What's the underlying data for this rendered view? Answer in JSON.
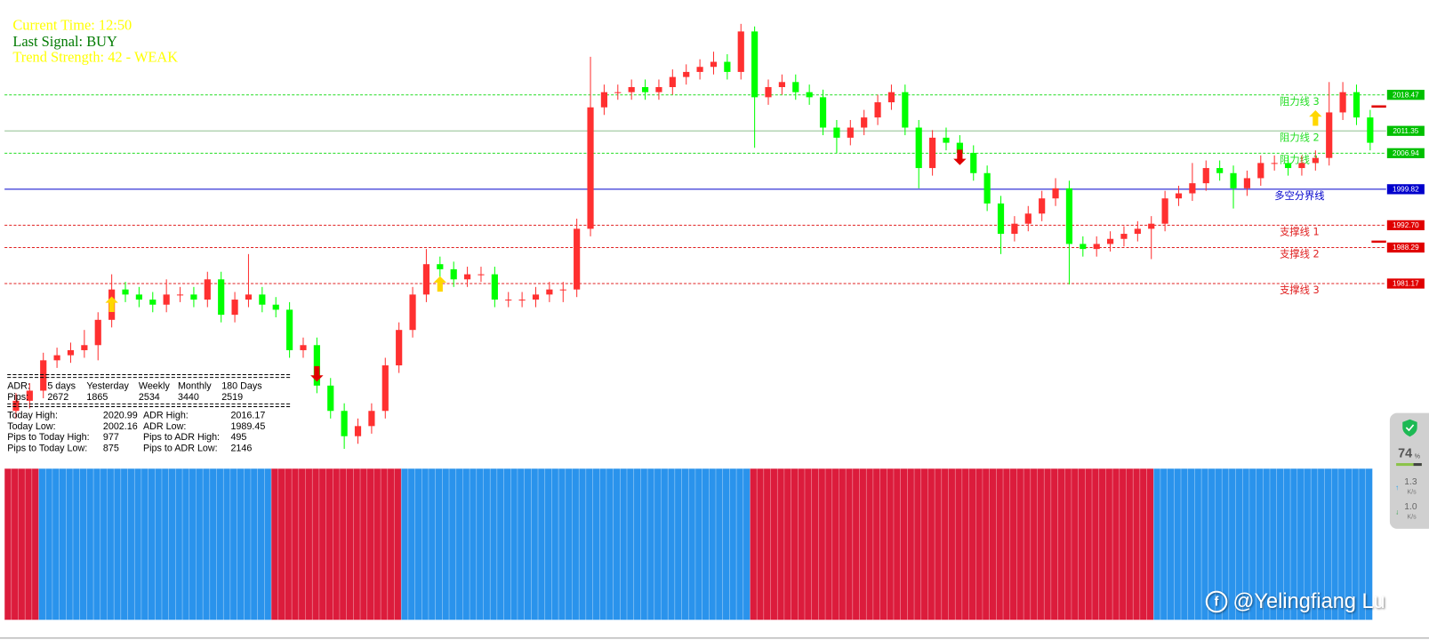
{
  "header": {
    "current_time": "Current Time: 12:50",
    "last_signal": "Last Signal: BUY",
    "trend_strength": "Trend Strength: 42 - WEAK"
  },
  "adr_table": {
    "head": [
      "ADR:",
      "5 days",
      "Yesterday",
      "Weekly",
      "Monthly",
      "180 Days"
    ],
    "pips": [
      "Pips:",
      "2672",
      "1865",
      "2534",
      "3440",
      "2519"
    ],
    "rows": [
      [
        "Today High:",
        "2020.99",
        "ADR High:",
        "2016.17"
      ],
      [
        "Today Low:",
        "2002.16",
        "ADR Low:",
        "1989.45"
      ],
      [
        "Pips to Today High:",
        "977",
        "Pips to ADR High:",
        "495"
      ],
      [
        "Pips to Today Low:",
        "875",
        "Pips to ADR Low:",
        "2146"
      ]
    ]
  },
  "chart_data": {
    "type": "candlestick",
    "ylim": [
      1947.12,
      2037.21
    ],
    "up_color": "#ff3030",
    "down_color": "#00ff00",
    "open": [
      1956,
      1958,
      1960,
      1966,
      1967,
      1968,
      1969,
      1974,
      1980,
      1979,
      1978,
      1977,
      1979,
      1979,
      1978,
      1982,
      1975,
      1978,
      1979,
      1977,
      1976,
      1968,
      1969,
      1961,
      1956,
      1951,
      1953,
      1956,
      1965,
      1972,
      1979,
      1985,
      1984,
      1982,
      1983,
      1983,
      1978,
      1978,
      1978,
      1979,
      1980,
      1980,
      1992,
      2016,
      2019,
      2019,
      2020,
      2019,
      2020,
      2022,
      2023,
      2024,
      2025,
      2023,
      2031,
      2018,
      2020,
      2021,
      2019,
      2018,
      2012,
      2010,
      2012,
      2014,
      2017,
      2019,
      2012,
      2004,
      2010,
      2009,
      2007,
      2003,
      1997,
      1991,
      1993,
      1995,
      1998,
      2000,
      1989,
      1988,
      1989,
      1990,
      1991,
      1992,
      1993,
      1998,
      1999,
      2001,
      2004,
      2003,
      2000,
      2002,
      2005,
      2005,
      2004,
      2005,
      2006,
      2015,
      2019,
      2014
    ],
    "high": [
      1959.5,
      1961.5,
      1967.5,
      1968.5,
      1969.5,
      1972,
      1975.5,
      1983,
      1981.5,
      1980.5,
      1979.5,
      1982,
      1980.5,
      1980.5,
      1983.5,
      1983.5,
      1979.5,
      1987,
      1980.5,
      1978.5,
      1977.5,
      1970.5,
      1970.5,
      1962.5,
      1957.5,
      1954.5,
      1957.5,
      1966.5,
      1973.5,
      1980.5,
      1988,
      1986.5,
      1985.5,
      1984.5,
      1984.5,
      1984.5,
      1979.5,
      1979.5,
      1980.5,
      1981.5,
      1981.5,
      1994,
      2026,
      2020.5,
      2020.5,
      2021.5,
      2021.5,
      2021.5,
      2023.5,
      2024.5,
      2025.5,
      2027,
      2026.5,
      2032.5,
      2032,
      2021.5,
      2022.5,
      2022.5,
      2020.5,
      2019.5,
      2013.5,
      2013.5,
      2015.5,
      2018.5,
      2020.5,
      2020.5,
      2013.5,
      2011.5,
      2012,
      2010.5,
      2008.5,
      2004.5,
      1998.5,
      1994.5,
      1996.5,
      1999.5,
      2002,
      2001.5,
      1990.5,
      1990.5,
      1991.5,
      1992.5,
      1993.5,
      1994.5,
      1999.5,
      2000.5,
      2005,
      2005.5,
      2005.5,
      2004.5,
      2003.5,
      2006.5,
      2006.5,
      2006.5,
      2006.5,
      2007.5,
      2021,
      2021,
      2020.5,
      2015.5
    ],
    "low": [
      1954.5,
      1956.5,
      1958.5,
      1964.5,
      1965.5,
      1966.5,
      1966,
      1972.5,
      1977.5,
      1976.5,
      1975.5,
      1975.5,
      1977.5,
      1976.5,
      1976.5,
      1973.5,
      1973.5,
      1976.5,
      1975.5,
      1974.5,
      1966.5,
      1966.5,
      1959.5,
      1954.5,
      1948.5,
      1949.5,
      1951.5,
      1954.5,
      1963.5,
      1970.5,
      1977.5,
      1982.5,
      1980.5,
      1980.5,
      1981.5,
      1976.5,
      1976.5,
      1976.5,
      1976.5,
      1977.5,
      1977.5,
      1978.5,
      1990.5,
      2014.5,
      2017.5,
      2017.5,
      2017.5,
      2017.5,
      2018.5,
      2020.5,
      2021.5,
      2022.5,
      2021.5,
      2021.5,
      2008,
      2016.5,
      2018.5,
      2017.5,
      2016.5,
      2010.5,
      2007,
      2008.5,
      2010.5,
      2012.5,
      2015.5,
      2010.5,
      2000,
      2002.5,
      2007.5,
      2005.5,
      2001.5,
      1995.5,
      1987,
      1989.5,
      1991.5,
      1993.5,
      1996.5,
      1981,
      1986.5,
      1986.5,
      1987.5,
      1988.5,
      1989.5,
      1986,
      1991.5,
      1996.5,
      1997.5,
      1999.5,
      2001.5,
      1996,
      1998.5,
      2000.5,
      2003.5,
      2002.5,
      2002.5,
      2003.5,
      2004.5,
      2013.5,
      2012.5,
      2007.5
    ],
    "close": [
      1958,
      1960,
      1966,
      1967,
      1968,
      1969,
      1974,
      1980,
      1979,
      1978,
      1977,
      1979,
      1979,
      1978,
      1982,
      1975,
      1978,
      1979,
      1977,
      1976,
      1968,
      1969,
      1961,
      1956,
      1951,
      1953,
      1956,
      1965,
      1972,
      1979,
      1985,
      1984,
      1982,
      1983,
      1983,
      1978,
      1978,
      1978,
      1979,
      1980,
      1980,
      1992,
      2016,
      2019,
      2019,
      2020,
      2019,
      2020,
      2022,
      2023,
      2024,
      2025,
      2023,
      2031,
      2018,
      2020,
      2021,
      2019,
      2018,
      2012,
      2010,
      2012,
      2014,
      2017,
      2019,
      2012,
      2004,
      2010,
      2009,
      2007,
      2003,
      1997,
      1991,
      1993,
      1995,
      1998,
      2000,
      1989,
      1988,
      1989,
      1990,
      1991,
      1992,
      1993,
      1998,
      1999,
      2001,
      2004,
      2003,
      2000,
      2002,
      2005,
      2005,
      2004,
      2005,
      2006,
      2015,
      2019,
      2014,
      2009
    ],
    "levels": [
      {
        "value": 2018.47,
        "name": "阻力线 3",
        "color": "#22dd22",
        "style": "dashed",
        "box_color": "#00c000"
      },
      {
        "value": 2011.35,
        "name": "阻力线 2",
        "color": "#8fbf8f",
        "style": "solid",
        "box_color": "#00c000"
      },
      {
        "value": 2006.94,
        "name": "阻力线 1",
        "color": "#22dd22",
        "style": "dashed",
        "box_color": "#00c000"
      },
      {
        "value": 1999.82,
        "name": "多空分界线",
        "color": "#0000cc",
        "style": "solid",
        "box_color": "#0000cc"
      },
      {
        "value": 1992.7,
        "price_label": "1992.70",
        "name": "支撑线 1",
        "color": "#e02020",
        "style": "dashed",
        "box_color": "#e00000"
      },
      {
        "value": 1988.29,
        "name": "支撑线 2",
        "color": "#e02020",
        "style": "dashed",
        "box_color": "#e00000"
      },
      {
        "value": 1981.17,
        "name": "支撑线 3",
        "color": "#e02020",
        "style": "dashed",
        "box_color": "#e00000"
      }
    ],
    "adr_markers": [
      2016.17,
      1989.45
    ],
    "marker_color": "#e00000",
    "signals": [
      {
        "index": 7,
        "price": 1977,
        "direction": "up",
        "color": "#ffd700"
      },
      {
        "index": 31,
        "price": 1981,
        "direction": "up",
        "color": "#ffd700"
      },
      {
        "index": 95,
        "price": 2013.8,
        "direction": "up",
        "color": "#ffd700"
      },
      {
        "index": 22,
        "price": 1963.4,
        "direction": "down",
        "color": "#e00000"
      },
      {
        "index": 69,
        "price": 2006.2,
        "direction": "down",
        "color": "#e00000"
      }
    ],
    "histogram": {
      "segments": [
        {
          "color": "#dc1c3c",
          "bars": 5
        },
        {
          "color": "#2a93ec",
          "bars": 34
        },
        {
          "color": "#dc1c3c",
          "bars": 19
        },
        {
          "color": "#2a93ec",
          "bars": 51
        },
        {
          "color": "#dc1c3c",
          "bars": 59
        },
        {
          "color": "#2a93ec",
          "bars": 32
        }
      ]
    }
  },
  "widget": {
    "percent": "74",
    "percent_sign": "%",
    "up": "1.3",
    "down": "1.0",
    "unit": "K/s"
  },
  "watermark": "@Yelingfiang Lu"
}
